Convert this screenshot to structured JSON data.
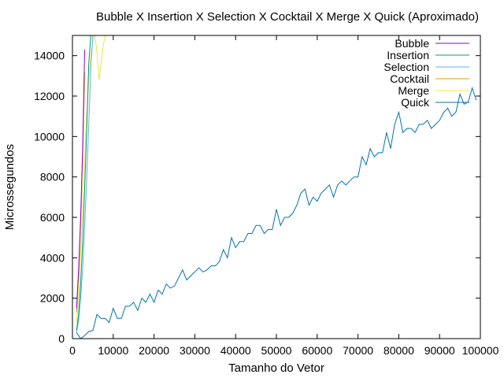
{
  "chart_data": {
    "type": "line",
    "title": "Bubble X Insertion X Selection X Cocktail X Merge X Quick (Aproximado)",
    "xlabel": "Tamanho do Vetor",
    "ylabel": "Microssegundos",
    "xlim": [
      0,
      100000
    ],
    "ylim": [
      0,
      15000
    ],
    "x_ticks": [
      0,
      10000,
      20000,
      30000,
      40000,
      50000,
      60000,
      70000,
      80000,
      90000,
      100000
    ],
    "y_ticks": [
      0,
      2000,
      4000,
      6000,
      8000,
      10000,
      12000,
      14000
    ],
    "grid": false,
    "legend_position": "top-right",
    "series": [
      {
        "name": "Bubble",
        "color": "#9400d3",
        "x": [
          1000,
          1500,
          2000,
          2500,
          3000
        ],
        "y": [
          1500,
          3400,
          6000,
          9500,
          14300
        ]
      },
      {
        "name": "Insertion",
        "color": "#009e73",
        "x": [
          1000,
          1500,
          2000,
          2500,
          3000,
          3500,
          4000,
          4500
        ],
        "y": [
          400,
          1200,
          2700,
          4800,
          7400,
          10300,
          13600,
          15000
        ]
      },
      {
        "name": "Selection",
        "color": "#56b4e9",
        "x": [
          1000,
          1500,
          2000,
          2500,
          3000,
          3500,
          4000,
          4500,
          5000
        ],
        "y": [
          300,
          900,
          2000,
          3500,
          5500,
          7900,
          10600,
          13400,
          15000
        ]
      },
      {
        "name": "Cocktail",
        "color": "#e69f00",
        "x": [
          1000,
          1500,
          2000,
          2500,
          3000
        ],
        "y": [
          1300,
          3100,
          5600,
          8900,
          13200
        ]
      },
      {
        "name": "Merge",
        "color": "#f0e442",
        "x": [
          1000,
          1500,
          2000,
          2500,
          3000,
          3500,
          4000,
          4500,
          5000,
          5500,
          6000,
          6500,
          7000,
          7500,
          8000
        ],
        "y": [
          800,
          2200,
          4200,
          6400,
          8800,
          11000,
          12800,
          14000,
          14800,
          15000,
          14200,
          12800,
          13600,
          14400,
          15000
        ]
      },
      {
        "name": "Quick",
        "color": "#0072b2",
        "x": [
          1000,
          2000,
          3000,
          4000,
          5000,
          6000,
          7000,
          8000,
          9000,
          10000,
          11000,
          12000,
          13000,
          14000,
          15000,
          16000,
          17000,
          18000,
          19000,
          20000,
          21000,
          22000,
          23000,
          24000,
          25000,
          26000,
          27000,
          28000,
          29000,
          30000,
          31000,
          32000,
          33000,
          34000,
          35000,
          36000,
          37000,
          38000,
          39000,
          40000,
          41000,
          42000,
          43000,
          44000,
          45000,
          46000,
          47000,
          48000,
          49000,
          50000,
          51000,
          52000,
          53000,
          54000,
          55000,
          56000,
          57000,
          58000,
          59000,
          60000,
          61000,
          62000,
          63000,
          64000,
          65000,
          66000,
          67000,
          68000,
          69000,
          70000,
          71000,
          72000,
          73000,
          74000,
          75000,
          76000,
          77000,
          78000,
          79000,
          80000,
          81000,
          82000,
          83000,
          84000,
          85000,
          86000,
          87000,
          88000,
          89000,
          90000,
          91000,
          92000,
          93000,
          94000,
          95000,
          96000,
          97000,
          98000,
          99000
        ],
        "y": [
          300,
          0,
          150,
          350,
          400,
          1200,
          1000,
          1000,
          800,
          1500,
          1000,
          1000,
          1600,
          1600,
          1800,
          1400,
          2000,
          1800,
          2200,
          1800,
          2400,
          2200,
          2700,
          2500,
          2600,
          3000,
          3400,
          2900,
          3100,
          3300,
          3500,
          3300,
          3400,
          3600,
          3600,
          3800,
          4400,
          4000,
          5000,
          4500,
          4800,
          4800,
          5200,
          5200,
          5600,
          5600,
          5200,
          5400,
          5400,
          6400,
          5600,
          6000,
          6000,
          6200,
          6600,
          7200,
          7400,
          6600,
          7000,
          6800,
          7200,
          7400,
          7600,
          7000,
          7600,
          7800,
          7600,
          7800,
          8000,
          8000,
          9000,
          8600,
          9400,
          9000,
          9200,
          9200,
          10200,
          9400,
          10600,
          11200,
          10200,
          10400,
          10400,
          10200,
          10600,
          10600,
          10800,
          10400,
          10600,
          10800,
          11200,
          11400,
          11000,
          11200,
          12100,
          11600,
          11700,
          12400,
          11800
        ]
      }
    ]
  }
}
